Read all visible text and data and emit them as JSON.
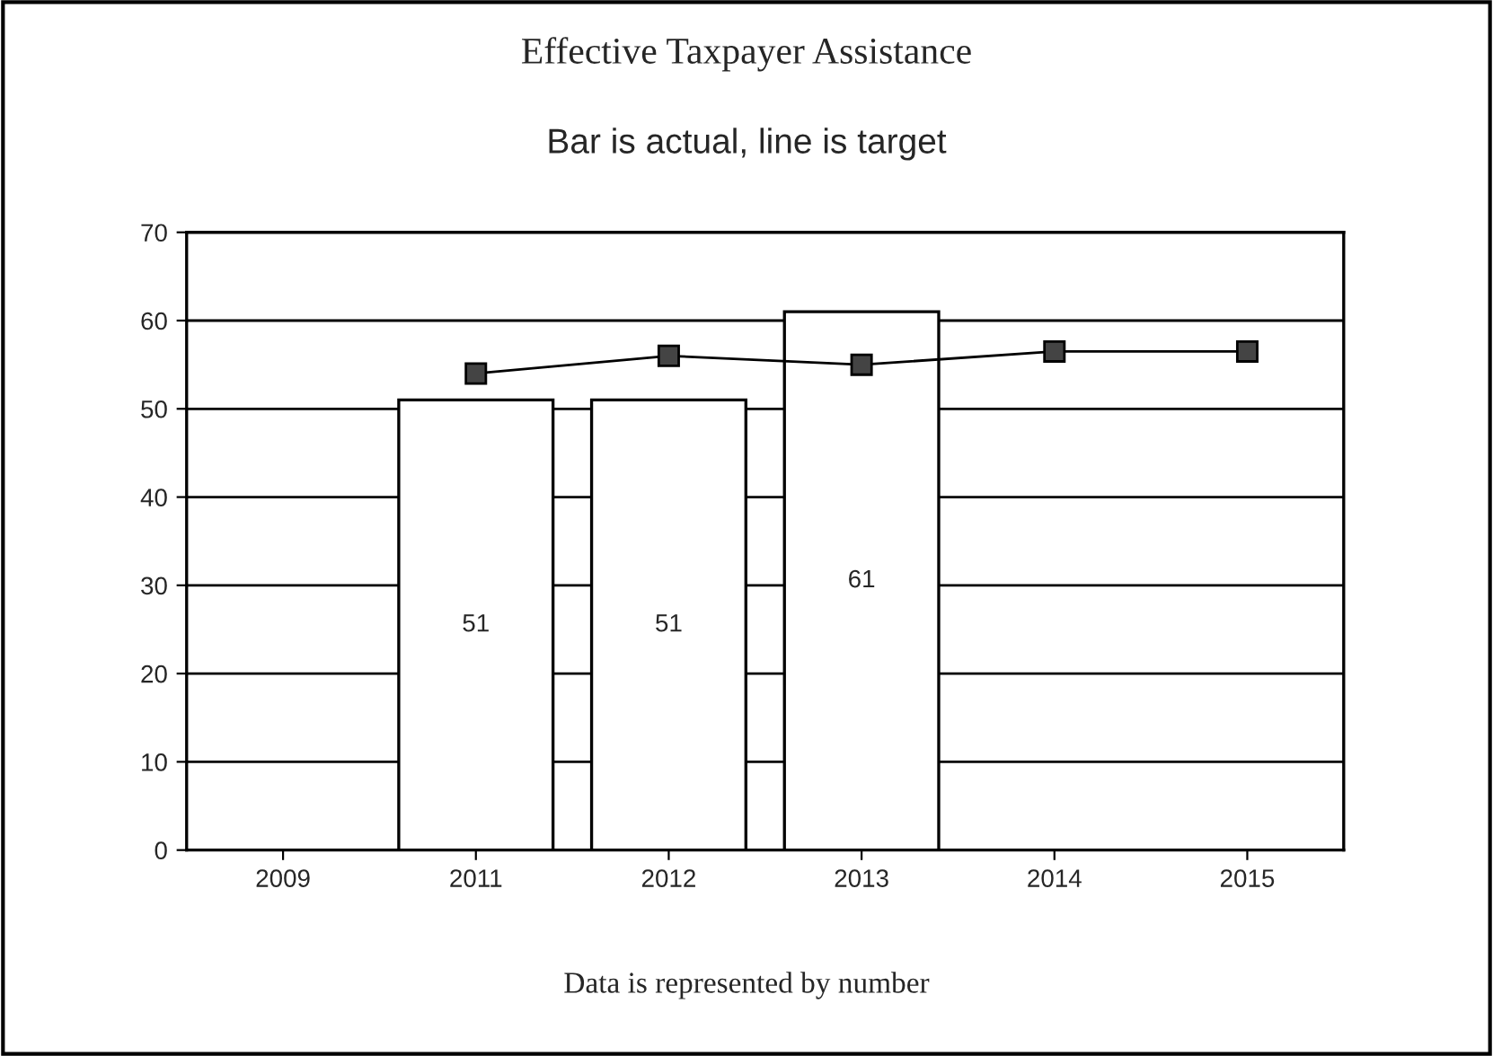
{
  "chart_data": {
    "type": "bar",
    "title": "Effective Taxpayer Assistance",
    "subtitle": "Bar is actual, line is target",
    "categories": [
      "2009",
      "2011",
      "2012",
      "2013",
      "2014",
      "2015"
    ],
    "series": [
      {
        "color": "#ffffff",
        "values": [
          null,
          51,
          51,
          61,
          null,
          null
        ],
        "data_labels": true
      },
      {
        "type": "line",
        "color": "#000000",
        "values": [
          null,
          54,
          56,
          55,
          56.5,
          56.5
        ],
        "marker": "square",
        "line_style": "solid"
      }
    ],
    "ylim": [
      0,
      70
    ],
    "yticks": [
      0,
      10,
      20,
      30,
      40,
      50,
      60,
      70
    ],
    "grid": "y",
    "legend": false,
    "annotations": [
      "Data is represented by number"
    ]
  }
}
